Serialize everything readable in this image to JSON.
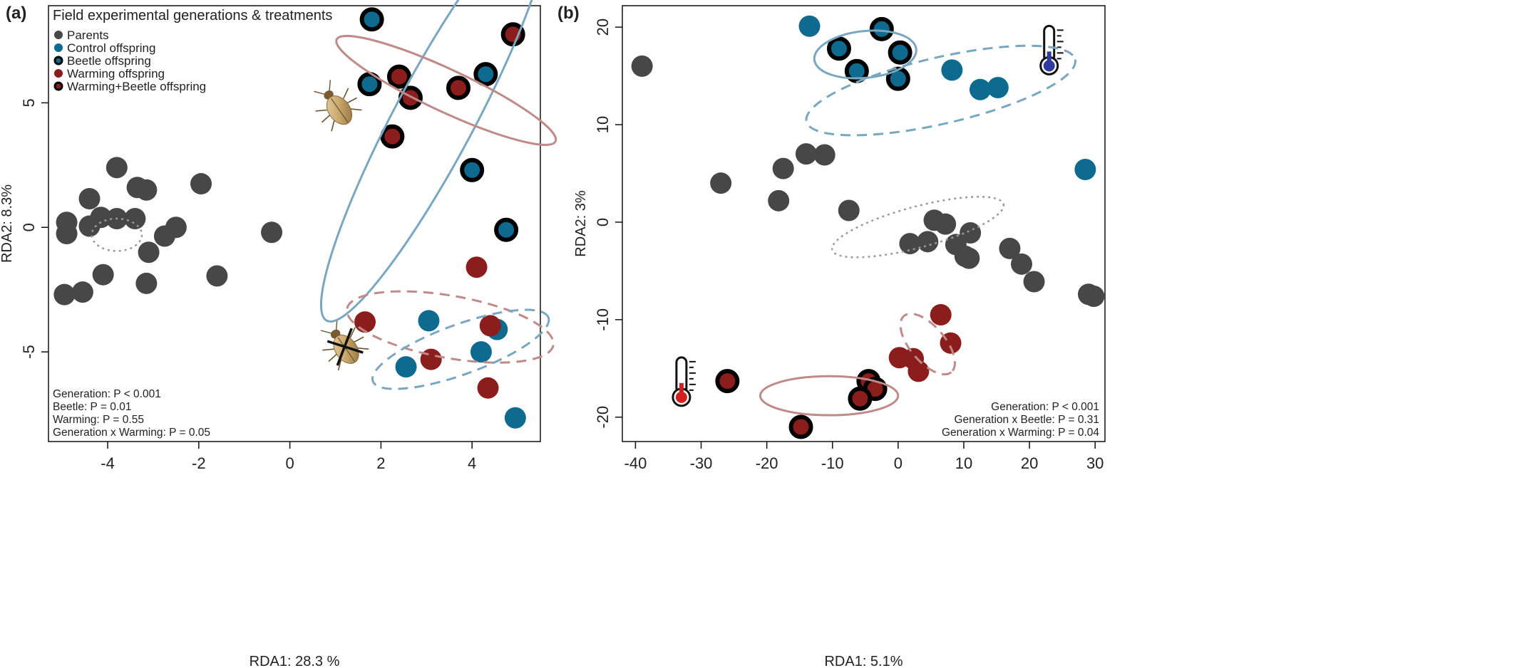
{
  "colors": {
    "parents": "#474747",
    "control": "#0e6a8e",
    "warming": "#8c1d1d",
    "beetle_ring": "#000000",
    "control_ellipse": "#79a7c0",
    "warming_ellipse": "#c08a8a",
    "parents_ellipse": "#9a9a9a"
  },
  "chart_data": [
    {
      "type": "scatter",
      "panel": "(a)",
      "xlabel": "RDA1: 28.3 %",
      "ylabel": "RDA2: 8.3%",
      "xlim": [
        -5.3,
        5.5
      ],
      "ylim": [
        -8.6,
        8.9
      ],
      "xticks": [
        -4,
        -2,
        0,
        2,
        4
      ],
      "yticks": [
        -5,
        0,
        5
      ],
      "legend": {
        "title": "Field experimental generations & treatments",
        "position": "top-left",
        "items": [
          {
            "label": "Parents",
            "group": "parents"
          },
          {
            "label": "Control offspring",
            "group": "control"
          },
          {
            "label": "Beetle offspring",
            "group": "beetle"
          },
          {
            "label": "Warming offspring",
            "group": "warming"
          },
          {
            "label": "Warming+Beetle offspring",
            "group": "warmingbeetle"
          }
        ]
      },
      "stats": [
        "Generation: P < 0.001",
        "Beetle: P = 0.01",
        "Warming: P = 0.55",
        "Generation x Warming: P = 0.05"
      ],
      "icons": [
        {
          "kind": "beetle",
          "x": 1.05,
          "y": 4.8
        },
        {
          "kind": "beetle-crossed",
          "x": 1.2,
          "y": -4.8
        }
      ],
      "ellipses": [
        {
          "group": "parents",
          "style": "dotted",
          "cx": -3.8,
          "cy": -0.3,
          "rx": 0.55,
          "ry": 0.65,
          "angle": 0
        },
        {
          "group": "control",
          "style": "solid",
          "cx": 3.18,
          "cy": 4.4,
          "rx": 5.05,
          "ry": 1.6,
          "angle": -62
        },
        {
          "group": "warming",
          "style": "solid",
          "cx": 3.43,
          "cy": 5.5,
          "rx": 2.65,
          "ry": 0.85,
          "angle": 25
        },
        {
          "group": "warming",
          "style": "dashed",
          "cx": 3.52,
          "cy": -4.0,
          "rx": 2.3,
          "ry": 1.25,
          "angle": 10
        },
        {
          "group": "control",
          "style": "dashed",
          "cx": 3.75,
          "cy": -4.9,
          "rx": 2.05,
          "ry": 1.0,
          "angle": -20
        }
      ],
      "series": [
        {
          "name": "Parents",
          "group": "parents",
          "points": [
            [
              -3.8,
              2.4
            ],
            [
              -3.35,
              1.6
            ],
            [
              -3.15,
              1.5
            ],
            [
              -1.95,
              1.75
            ],
            [
              -4.4,
              1.15
            ],
            [
              -4.15,
              0.4
            ],
            [
              -3.8,
              0.35
            ],
            [
              -3.4,
              0.35
            ],
            [
              -4.9,
              0.2
            ],
            [
              -4.4,
              0.05
            ],
            [
              -4.9,
              -0.25
            ],
            [
              -2.5,
              0.0
            ],
            [
              -2.75,
              -0.35
            ],
            [
              -0.4,
              -0.2
            ],
            [
              -3.1,
              -1.0
            ],
            [
              -4.1,
              -1.9
            ],
            [
              -1.6,
              -1.95
            ],
            [
              -3.15,
              -2.25
            ],
            [
              -4.95,
              -2.7
            ],
            [
              -4.55,
              -2.6
            ]
          ]
        },
        {
          "name": "Control offspring",
          "group": "control",
          "points": [
            [
              3.05,
              -3.75
            ],
            [
              4.55,
              -4.1
            ],
            [
              4.2,
              -5.0
            ],
            [
              2.55,
              -5.6
            ],
            [
              4.95,
              -7.65
            ]
          ]
        },
        {
          "name": "Beetle offspring",
          "group": "beetle",
          "points": [
            [
              1.8,
              8.35
            ],
            [
              1.75,
              5.75
            ],
            [
              4.3,
              6.15
            ],
            [
              4.0,
              2.3
            ],
            [
              4.75,
              -0.1
            ]
          ]
        },
        {
          "name": "Warming offspring",
          "group": "warming",
          "points": [
            [
              4.1,
              -1.6
            ],
            [
              1.65,
              -3.8
            ],
            [
              3.1,
              -5.3
            ],
            [
              4.35,
              -6.45
            ],
            [
              4.4,
              -3.95
            ]
          ]
        },
        {
          "name": "Warming+Beetle offspring",
          "group": "warmingbeetle",
          "points": [
            [
              4.9,
              7.75
            ],
            [
              2.4,
              6.05
            ],
            [
              2.65,
              5.2
            ],
            [
              3.7,
              5.6
            ],
            [
              2.25,
              3.65
            ]
          ]
        }
      ]
    },
    {
      "type": "scatter",
      "panel": "(b)",
      "xlabel": "RDA1: 5.1%",
      "ylabel": "RDA2: 3%",
      "xlim": [
        -42,
        31.5
      ],
      "ylim": [
        -22.5,
        22.2
      ],
      "xticks": [
        -40,
        -30,
        -20,
        -10,
        0,
        10,
        20,
        30
      ],
      "yticks": [
        -20,
        -10,
        0,
        10,
        20
      ],
      "stats": [
        "Generation: P < 0.001",
        "Generation x Beetle: P = 0.31",
        "Generation x Warming: P = 0.04"
      ],
      "icons": [
        {
          "kind": "thermometer-cold",
          "x": 23,
          "y": 17.5
        },
        {
          "kind": "thermometer-hot",
          "x": -33,
          "y": -16.5
        }
      ],
      "ellipses": [
        {
          "group": "control",
          "style": "solid",
          "cx": -5.0,
          "cy": 17.2,
          "rx": 7.8,
          "ry": 2.4,
          "angle": -6
        },
        {
          "group": "control",
          "style": "dashed",
          "cx": 6.5,
          "cy": 13.5,
          "rx": 21.0,
          "ry": 3.4,
          "angle": -13
        },
        {
          "group": "parents",
          "style": "dotted",
          "cx": 3.0,
          "cy": -0.5,
          "rx": 13.5,
          "ry": 2.1,
          "angle": -15
        },
        {
          "group": "warming",
          "style": "solid",
          "cx": -10.5,
          "cy": -17.8,
          "rx": 10.5,
          "ry": 2.0,
          "angle": 0
        },
        {
          "group": "warming",
          "style": "dashed",
          "cx": 4.5,
          "cy": -12.5,
          "rx": 5.6,
          "ry": 1.8,
          "angle": 50
        }
      ],
      "series": [
        {
          "name": "Parents",
          "group": "parents",
          "points": [
            [
              -39,
              16
            ],
            [
              -14,
              7.0
            ],
            [
              -11.2,
              6.9
            ],
            [
              -17.5,
              5.5
            ],
            [
              -27,
              4.0
            ],
            [
              -18.2,
              2.2
            ],
            [
              -7.5,
              1.2
            ],
            [
              5.5,
              0.2
            ],
            [
              7.2,
              -0.2
            ],
            [
              11,
              -1.1
            ],
            [
              1.8,
              -2.2
            ],
            [
              4.5,
              -2.0
            ],
            [
              8.8,
              -2.3
            ],
            [
              10.2,
              -3.5
            ],
            [
              10.8,
              -3.7
            ],
            [
              17,
              -2.7
            ],
            [
              18.8,
              -4.3
            ],
            [
              20.7,
              -6.1
            ],
            [
              29,
              -7.4
            ],
            [
              29.8,
              -7.6
            ]
          ]
        },
        {
          "name": "Control offspring",
          "group": "control",
          "points": [
            [
              -13.5,
              20.1
            ],
            [
              8.2,
              15.6
            ],
            [
              12.5,
              13.6
            ],
            [
              15.2,
              13.8
            ],
            [
              28.5,
              5.4
            ]
          ]
        },
        {
          "name": "Beetle offspring",
          "group": "beetle",
          "points": [
            [
              -9,
              17.8
            ],
            [
              -2.5,
              19.8
            ],
            [
              0.3,
              17.4
            ],
            [
              -6.3,
              15.5
            ],
            [
              0.0,
              14.7
            ]
          ]
        },
        {
          "name": "Warming offspring",
          "group": "warming",
          "points": [
            [
              6.5,
              -9.5
            ],
            [
              8.0,
              -12.4
            ],
            [
              0.2,
              -13.9
            ],
            [
              2.3,
              -14.0
            ],
            [
              3.1,
              -15.3
            ]
          ]
        },
        {
          "name": "Warming+Beetle offspring",
          "group": "warmingbeetle",
          "points": [
            [
              -26,
              -16.3
            ],
            [
              -4.5,
              -16.3
            ],
            [
              -3.5,
              -17.1
            ],
            [
              -5.8,
              -18.1
            ],
            [
              -14.8,
              -21.0
            ]
          ]
        }
      ]
    }
  ]
}
